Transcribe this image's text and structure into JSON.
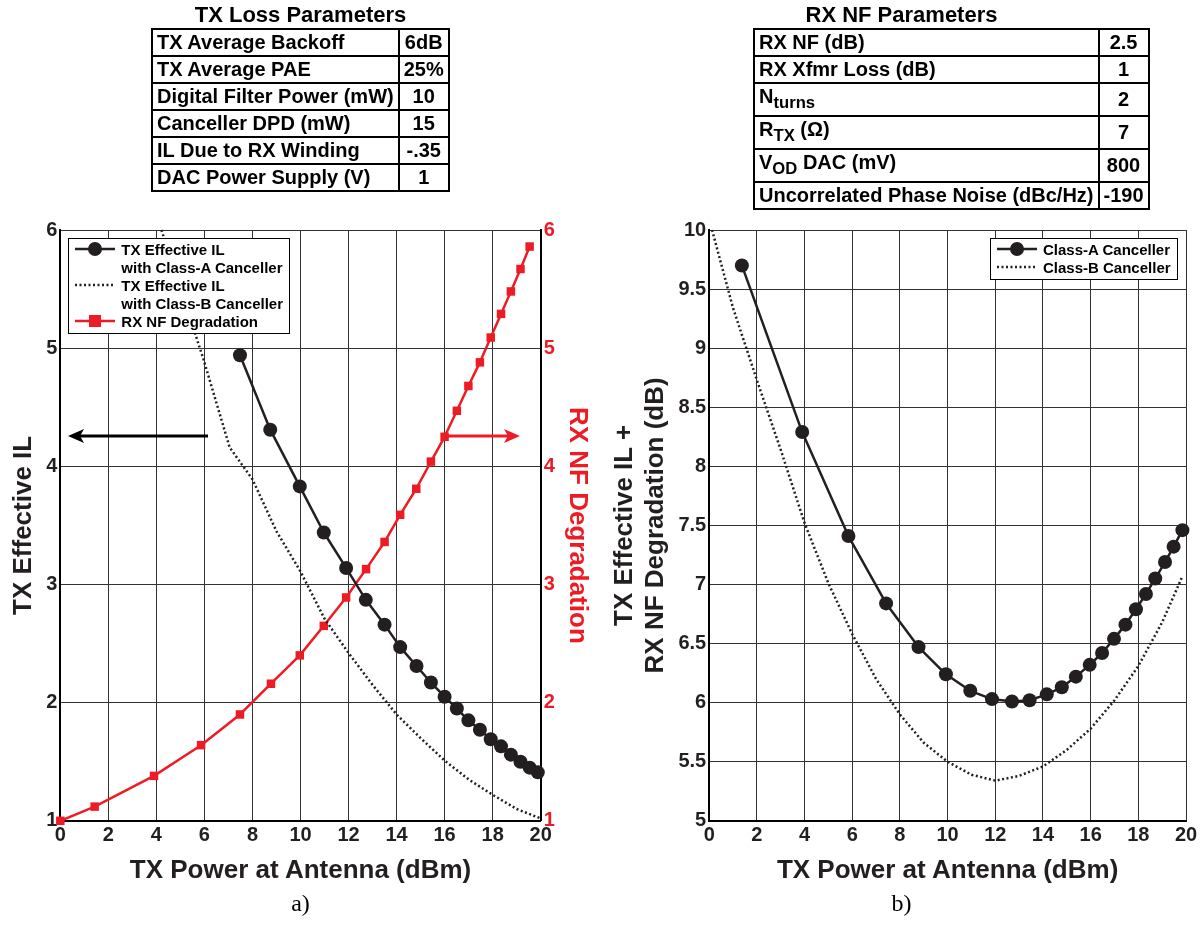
{
  "chart_data": [
    {
      "type": "line",
      "title": "TX Loss Parameters",
      "xlabel": "TX Power at Antenna (dBm)",
      "ylabel": "TX Effective IL",
      "y2label": "RX NF Degradation",
      "annotations": [
        "TX Average Backoff",
        "6dB",
        "TX Average PAE",
        "25%",
        "Digital Filter Power (mW)",
        "10",
        "Canceller DPD (mW)",
        "15",
        "IL Due to RX Winding",
        "-.35",
        "DAC Power Supply (V)",
        "1",
        "a)"
      ],
      "xlim": [
        0,
        20
      ],
      "xticks": [
        0,
        2,
        4,
        6,
        8,
        10,
        12,
        14,
        16,
        18,
        20
      ],
      "ylim": [
        1,
        6
      ],
      "yticks": [
        1,
        2,
        3,
        4,
        5,
        6
      ],
      "y2lim": [
        1,
        6
      ],
      "y2ticks": [
        1,
        2,
        3,
        4,
        5,
        6
      ],
      "grid": true,
      "legend": "top left",
      "series": [
        {
          "name": "TX Effective IL\nwith Class-A Canceller",
          "color": "#231f20",
          "marker": "circle",
          "line_style": "solid",
          "x": [
            7.48,
            8.74,
            9.97,
            10.97,
            11.9,
            12.72,
            13.5,
            14.15,
            14.83,
            15.43,
            16.0,
            16.51,
            16.99,
            17.47,
            17.92,
            18.35,
            18.76,
            19.16,
            19.54,
            19.88
          ],
          "values": [
            4.94,
            4.31,
            3.83,
            3.44,
            3.14,
            2.87,
            2.66,
            2.47,
            2.31,
            2.17,
            2.05,
            1.95,
            1.85,
            1.77,
            1.69,
            1.63,
            1.56,
            1.5,
            1.45,
            1.41
          ]
        },
        {
          "name": "TX Effective IL\nwith Class-B Canceller",
          "color": "#231f20",
          "marker": "none",
          "line_style": "dotted",
          "x": [
            4.21,
            5.97,
            7.05,
            8,
            9,
            10,
            11,
            12,
            13,
            14,
            15,
            16,
            17,
            18,
            19,
            20
          ],
          "values": [
            6,
            4.9,
            4.16,
            3.89,
            3.45,
            3.11,
            2.71,
            2.42,
            2.15,
            1.9,
            1.7,
            1.51,
            1.35,
            1.22,
            1.1,
            1.02
          ]
        },
        {
          "name": "RX NF Degradation",
          "color": "#ed1c24",
          "marker": "square",
          "line_style": "solid",
          "axis": "y2",
          "x": [
            0,
            1.43,
            3.9,
            5.86,
            7.48,
            8.77,
            9.97,
            10.97,
            11.9,
            12.73,
            13.5,
            14.15,
            14.82,
            15.43,
            16.0,
            16.51,
            16.99,
            17.47,
            17.92,
            18.35,
            18.76,
            19.16,
            19.54
          ],
          "values": [
            1,
            1.12,
            1.38,
            1.64,
            1.9,
            2.16,
            2.4,
            2.65,
            2.89,
            3.13,
            3.36,
            3.59,
            3.81,
            4.04,
            4.25,
            4.47,
            4.68,
            4.88,
            5.09,
            5.29,
            5.48,
            5.67,
            5.86
          ]
        }
      ]
    },
    {
      "type": "line",
      "title": "RX NF Parameters",
      "xlabel": "TX Power at Antenna (dBm)",
      "ylabel": "TX Effective IL +\nRX NF Degradation (dB)",
      "annotations": [
        "RX NF (dB)",
        "2.5",
        "RX Xfmr Loss (dB)",
        "1",
        "N$_{turns}$",
        "2",
        "R$_{TX}$ (Ω)",
        "7",
        "V$_{OD}$ DAC (mV)",
        "800",
        "Uncorrelated Phase Noise (dBc/Hz)",
        "-190",
        "b)"
      ],
      "xlim": [
        0,
        20
      ],
      "xticks": [
        0,
        2,
        4,
        6,
        8,
        10,
        12,
        14,
        16,
        18,
        20
      ],
      "ylim": [
        5,
        10
      ],
      "yticks": [
        5,
        5.5,
        6,
        6.5,
        7,
        7.5,
        8,
        8.5,
        9,
        9.5,
        10
      ],
      "grid": true,
      "legend": "top right",
      "series": [
        {
          "name": "Class-A Canceller",
          "color": "#231f20",
          "marker": "circle",
          "line_style": "solid",
          "x": [
            1.37,
            3.9,
            5.84,
            7.42,
            8.78,
            9.93,
            10.95,
            11.86,
            12.7,
            13.44,
            14.16,
            14.79,
            15.38,
            15.96,
            16.48,
            16.98,
            17.46,
            17.9,
            18.32,
            18.71,
            19.12,
            19.48,
            19.85
          ],
          "values": [
            9.7,
            8.29,
            7.41,
            6.84,
            6.47,
            6.24,
            6.1,
            6.03,
            6.01,
            6.02,
            6.07,
            6.13,
            6.22,
            6.32,
            6.42,
            6.54,
            6.66,
            6.79,
            6.92,
            7.05,
            7.19,
            7.32,
            7.46
          ]
        },
        {
          "name": "Class-B Canceller",
          "color": "#231f20",
          "marker": "none",
          "line_style": "dotted",
          "x": [
            0.12,
            1,
            2,
            3,
            4,
            5,
            6,
            7,
            8,
            9,
            10,
            11,
            12,
            13,
            14,
            15,
            16,
            17,
            18,
            19,
            19.85
          ],
          "values": [
            10,
            9.34,
            8.73,
            8.14,
            7.52,
            7.01,
            6.58,
            6.2,
            5.9,
            5.66,
            5.5,
            5.39,
            5.34,
            5.38,
            5.46,
            5.6,
            5.78,
            6.02,
            6.31,
            6.68,
            7.07
          ]
        }
      ]
    }
  ]
}
